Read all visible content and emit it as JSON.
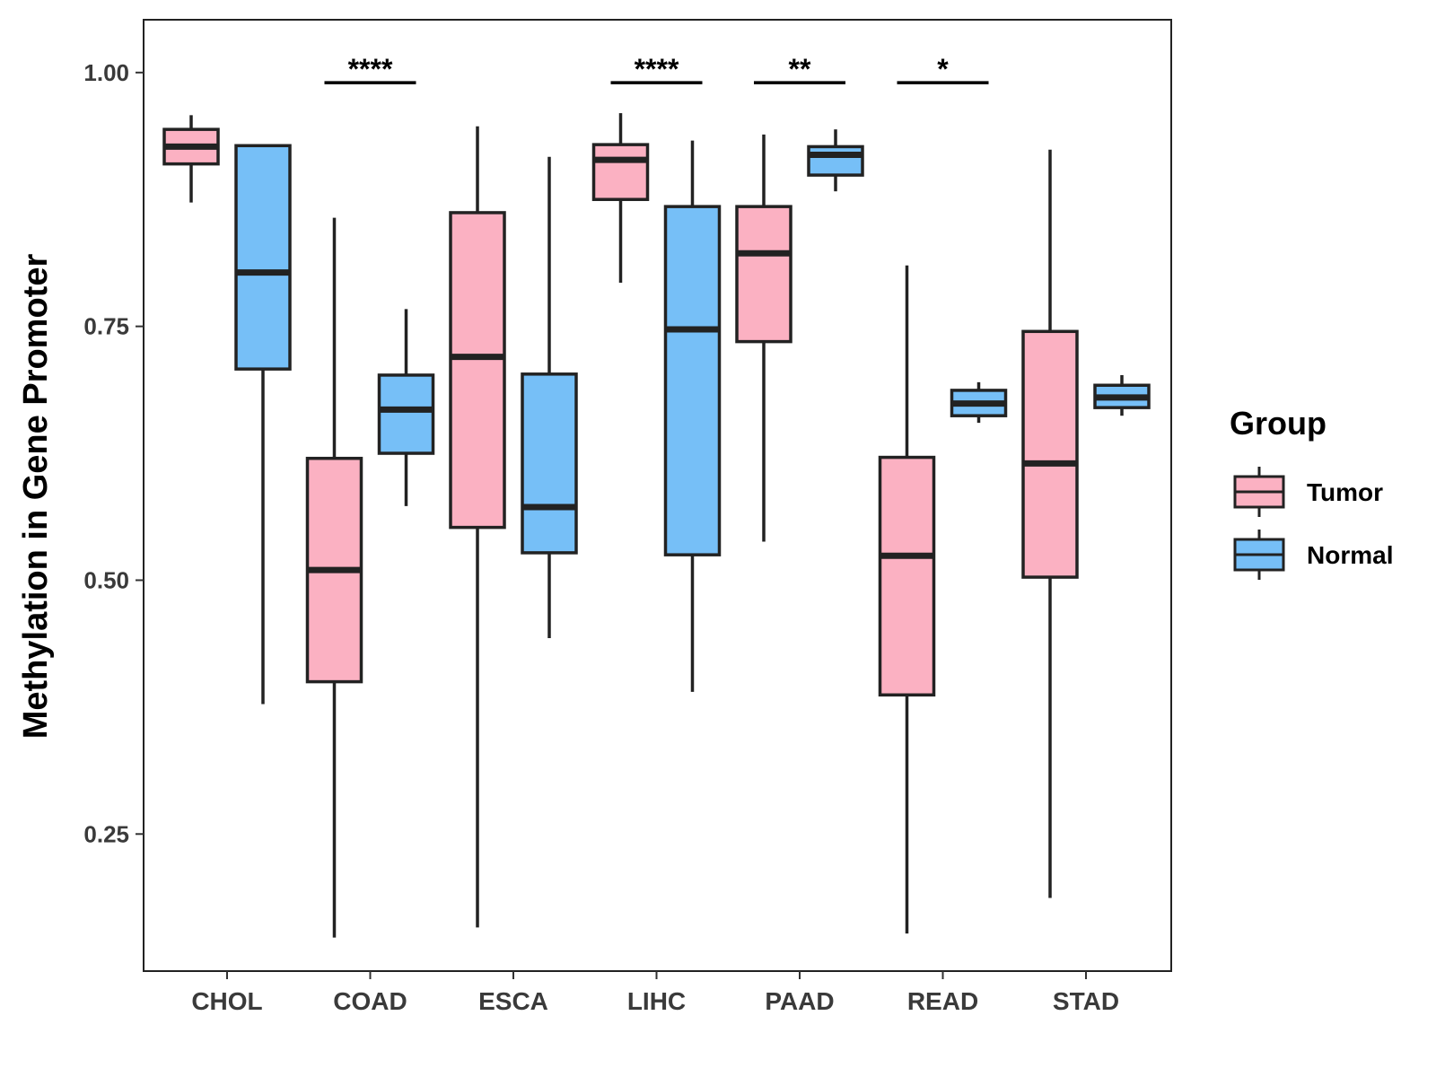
{
  "chart_data": {
    "type": "boxplot",
    "ylabel": "Methylation in Gene Promoter",
    "xlabel": "",
    "ylim": [
      0.115,
      1.052
    ],
    "yticks": [
      0.25,
      0.5,
      0.75,
      1.0
    ],
    "ytick_labels": [
      "0.25",
      "0.50",
      "0.75",
      "1.00"
    ],
    "categories": [
      "CHOL",
      "COAD",
      "ESCA",
      "LIHC",
      "PAAD",
      "READ",
      "STAD"
    ],
    "colors": {
      "Tumor": "#fbb1c2",
      "Normal": "#76bff7",
      "stroke": "#222222"
    },
    "legend": {
      "title": "Group",
      "position": "right",
      "entries": [
        "Tumor",
        "Normal"
      ]
    },
    "series": [
      {
        "name": "Tumor",
        "boxes": [
          {
            "whisker_low": 0.872,
            "q1": 0.91,
            "median": 0.927,
            "q3": 0.944,
            "whisker_high": 0.958
          },
          {
            "whisker_low": 0.148,
            "q1": 0.4,
            "median": 0.51,
            "q3": 0.62,
            "whisker_high": 0.857
          },
          {
            "whisker_low": 0.158,
            "q1": 0.552,
            "median": 0.72,
            "q3": 0.862,
            "whisker_high": 0.947
          },
          {
            "whisker_low": 0.793,
            "q1": 0.875,
            "median": 0.914,
            "q3": 0.929,
            "whisker_high": 0.96
          },
          {
            "whisker_low": 0.538,
            "q1": 0.735,
            "median": 0.822,
            "q3": 0.868,
            "whisker_high": 0.939
          },
          {
            "whisker_low": 0.152,
            "q1": 0.387,
            "median": 0.524,
            "q3": 0.621,
            "whisker_high": 0.81
          },
          {
            "whisker_low": 0.187,
            "q1": 0.503,
            "median": 0.615,
            "q3": 0.745,
            "whisker_high": 0.924
          }
        ]
      },
      {
        "name": "Normal",
        "boxes": [
          {
            "whisker_low": 0.378,
            "q1": 0.708,
            "median": 0.803,
            "q3": 0.928,
            "whisker_high": 0.928
          },
          {
            "whisker_low": 0.573,
            "q1": 0.625,
            "median": 0.668,
            "q3": 0.702,
            "whisker_high": 0.767
          },
          {
            "whisker_low": 0.443,
            "q1": 0.527,
            "median": 0.572,
            "q3": 0.703,
            "whisker_high": 0.917
          },
          {
            "whisker_low": 0.39,
            "q1": 0.525,
            "median": 0.747,
            "q3": 0.868,
            "whisker_high": 0.933
          },
          {
            "whisker_low": 0.883,
            "q1": 0.899,
            "median": 0.919,
            "q3": 0.927,
            "whisker_high": 0.944
          },
          {
            "whisker_low": 0.655,
            "q1": 0.662,
            "median": 0.674,
            "q3": 0.687,
            "whisker_high": 0.695
          },
          {
            "whisker_low": 0.662,
            "q1": 0.67,
            "median": 0.68,
            "q3": 0.692,
            "whisker_high": 0.702
          }
        ]
      }
    ],
    "significance": [
      {
        "category": "COAD",
        "label": "****"
      },
      {
        "category": "LIHC",
        "label": "****"
      },
      {
        "category": "PAAD",
        "label": "**"
      },
      {
        "category": "READ",
        "label": "*"
      }
    ],
    "significance_y": 0.99
  }
}
